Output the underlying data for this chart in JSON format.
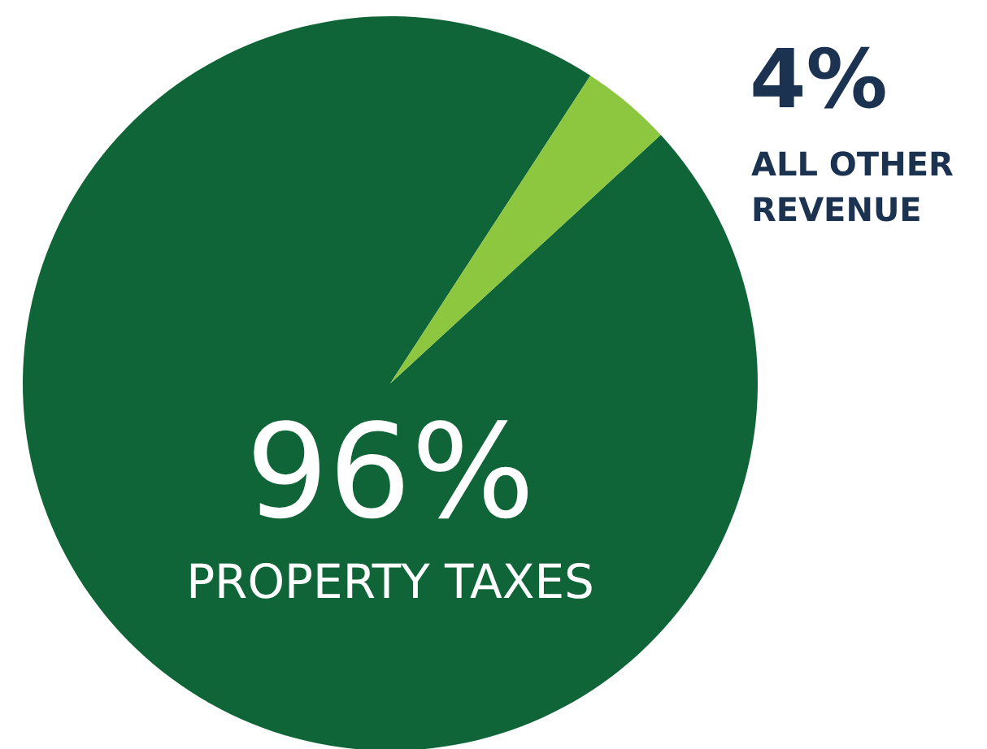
{
  "chart_data": {
    "type": "pie",
    "categories": [
      "PROPERTY TAXES",
      "ALL OTHER REVENUE"
    ],
    "values": [
      96,
      4
    ],
    "colors": [
      "#0f6538",
      "#8dc63f"
    ],
    "value_labels": [
      "96%",
      "4%"
    ]
  }
}
